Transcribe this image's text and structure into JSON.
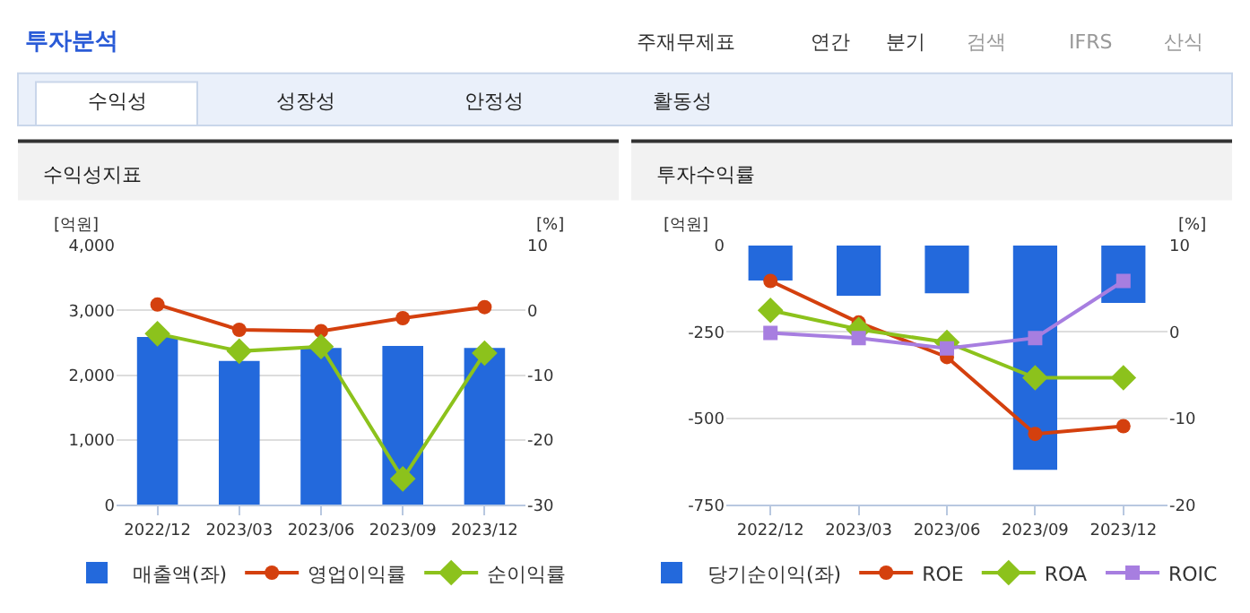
{
  "chart_data": [
    {
      "type": "other",
      "title": "투자분석",
      "annotations": [
        "주재무제표",
        "연간",
        "분기",
        "검색",
        "IFRS",
        "산식",
        "수익성",
        "성장성",
        "안정성",
        "활동성"
      ]
    },
    {
      "type": "bar",
      "title": "수익성지표",
      "ylabel": "[억원]",
      "y2label": "[%]",
      "categories": [
        "2022/12",
        "2023/03",
        "2023/06",
        "2023/09",
        "2023/12"
      ],
      "ylim": [
        0,
        4000
      ],
      "yticks": [
        0,
        {
          "value": 1000,
          "label": "1,000"
        },
        {
          "value": 2000,
          "label": "2,000"
        },
        {
          "value": 3000,
          "label": "3,000"
        },
        {
          "value": 4000,
          "label": "4,000"
        }
      ],
      "y2lim": [
        -30,
        10
      ],
      "y2ticks": [
        -30,
        -20,
        -10,
        0,
        10
      ],
      "grid": "y",
      "legend": "bottom",
      "series": [
        {
          "name": "매출액(좌)",
          "type": "bar",
          "color": "#2369dc",
          "values": [
            2590,
            2220,
            2420,
            2450,
            2420
          ]
        },
        {
          "name": "영업이익률",
          "type": "line",
          "axis": "y2",
          "marker": "circle",
          "color": "#d4400e",
          "values": [
            0.9,
            -3.0,
            -3.2,
            -1.2,
            0.5
          ]
        },
        {
          "name": "순이익률",
          "type": "line",
          "axis": "y2",
          "marker": "diamond",
          "color": "#8cc21c",
          "values": [
            -3.6,
            -6.3,
            -5.6,
            -26.0,
            -6.6
          ]
        }
      ]
    },
    {
      "type": "bar",
      "title": "투자수익률",
      "ylabel": "[억원]",
      "y2label": "[%]",
      "categories": [
        "2022/12",
        "2023/03",
        "2023/06",
        "2023/09",
        "2023/12"
      ],
      "ylim": [
        -750,
        0
      ],
      "yticks": [
        -750,
        -500,
        -250,
        0
      ],
      "y2lim": [
        -20,
        10
      ],
      "y2ticks": [
        -20,
        -10,
        0,
        10
      ],
      "grid": "y",
      "legend": "bottom",
      "series": [
        {
          "name": "당기순이익(좌)",
          "type": "bar",
          "color": "#2369dc",
          "values": [
            -101,
            -145,
            -138,
            -649,
            -166
          ]
        },
        {
          "name": "ROE",
          "type": "line",
          "axis": "y2",
          "marker": "circle",
          "color": "#d4400e",
          "values": [
            5.9,
            1.1,
            -2.9,
            -11.8,
            -10.9
          ]
        },
        {
          "name": "ROA",
          "type": "line",
          "axis": "y2",
          "marker": "diamond",
          "color": "#8cc21c",
          "values": [
            2.5,
            0.3,
            -1.2,
            -5.3,
            -5.3
          ]
        },
        {
          "name": "ROIC",
          "type": "line",
          "axis": "y2",
          "marker": "square",
          "color": "#a77ee0",
          "values": [
            -0.1,
            -0.7,
            -1.9,
            -0.7,
            5.9
          ]
        }
      ]
    }
  ]
}
